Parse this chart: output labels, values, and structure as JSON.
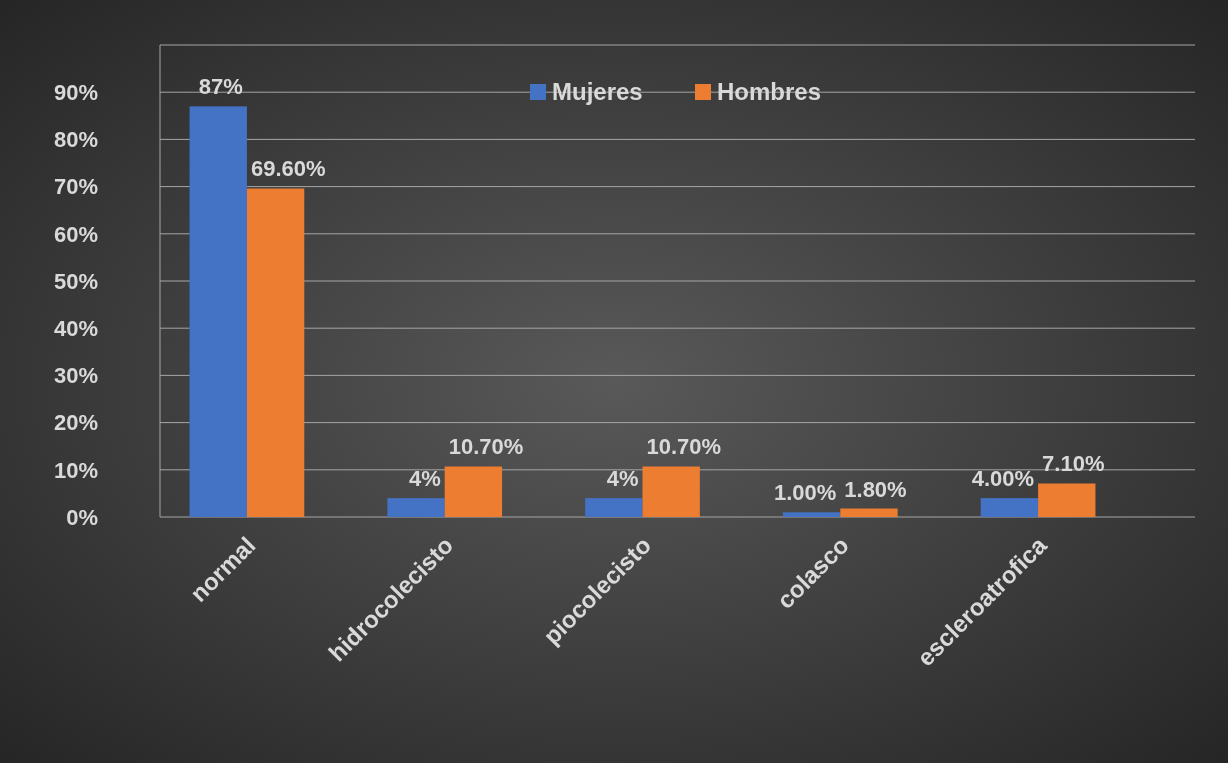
{
  "chart_data": {
    "type": "bar",
    "categories": [
      "normal",
      "hidrocolecisto",
      "piocolecisto",
      "colasco",
      "escleroatrofica"
    ],
    "series": [
      {
        "name": "Mujeres",
        "color": "#4472c4",
        "values": [
          87,
          4,
          4,
          1,
          4
        ],
        "value_labels": [
          "87%",
          "4%",
          "4%",
          "1.00%",
          "4.00%"
        ]
      },
      {
        "name": "Hombres",
        "color": "#ed7d31",
        "values": [
          69.6,
          10.7,
          10.7,
          1.8,
          7.1
        ],
        "value_labels": [
          "69.60%",
          "10.70%",
          "10.70%",
          "1.80%",
          "7.10%"
        ]
      }
    ],
    "ylim": [
      0,
      100
    ],
    "yticks": [
      {
        "value": 0,
        "label": "0%"
      },
      {
        "value": 10,
        "label": "10%"
      },
      {
        "value": 20,
        "label": "20%"
      },
      {
        "value": 30,
        "label": "30%"
      },
      {
        "value": 40,
        "label": "40%"
      },
      {
        "value": 50,
        "label": "50%"
      },
      {
        "value": 60,
        "label": "60%"
      },
      {
        "value": 70,
        "label": "70%"
      },
      {
        "value": 80,
        "label": "80%"
      },
      {
        "value": 90,
        "label": "90%"
      },
      {
        "value": 100,
        "label": null
      }
    ],
    "grid": "y",
    "legend": "top"
  }
}
